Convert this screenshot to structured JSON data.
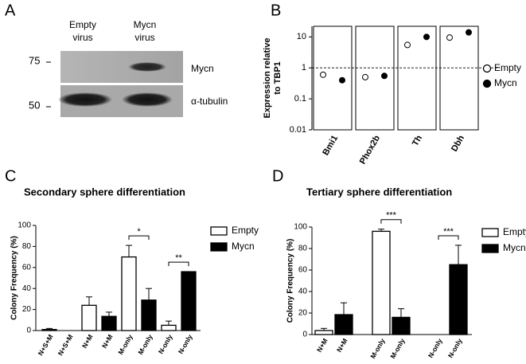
{
  "panels": [
    "A",
    "B",
    "C",
    "D"
  ],
  "blot": {
    "lanes": [
      [
        "Empty",
        "virus"
      ],
      [
        "Mycn",
        "virus"
      ]
    ],
    "markers": [
      75,
      50
    ],
    "bands": [
      "Mycn",
      "α-tubulin"
    ]
  },
  "chart_data": [
    {
      "type": "dot",
      "y_label": [
        "Expression relative",
        "to TBP1"
      ],
      "categories": [
        "Bmi1",
        "Phox2b",
        "Th",
        "Dbh"
      ],
      "series": [
        {
          "name": "Empty",
          "color": "#000000",
          "marker": "open",
          "values": [
            0.6,
            0.5,
            5.5,
            9.5
          ]
        },
        {
          "name": "Mycn",
          "color": "#000000",
          "marker": "filled",
          "values": [
            0.4,
            0.55,
            10,
            14
          ]
        }
      ],
      "ylim": [
        0.01,
        22
      ],
      "yticks": [
        0.01,
        0.1,
        1,
        10
      ],
      "log_y": true,
      "reference_line": 1,
      "legend": "right"
    },
    {
      "type": "bar",
      "title": "Secondary sphere differentiation",
      "y_label": "Colony Frequency (%)",
      "categories": [
        "N+S+M",
        "N+M",
        "M-only",
        "N-only"
      ],
      "series": [
        {
          "name": "Empty",
          "color": "#ffffff",
          "values": [
            1,
            24,
            70,
            5
          ],
          "errors": [
            1,
            8,
            11,
            4
          ]
        },
        {
          "name": "Mycn",
          "color": "#000000",
          "values": [
            0,
            13.5,
            29,
            56
          ],
          "errors": [
            null,
            4,
            11,
            null
          ]
        }
      ],
      "significance": [
        null,
        null,
        "*",
        "**"
      ],
      "ylim": [
        0,
        100
      ],
      "yticks": [
        0,
        20,
        40,
        60,
        80,
        100
      ],
      "legend": "right"
    },
    {
      "type": "bar",
      "title": "Tertiary sphere differentiation",
      "y_label": "Colony Frequency (%)",
      "categories": [
        "N+M",
        "M-only",
        "N-only"
      ],
      "series": [
        {
          "name": "Empty",
          "color": "#ffffff",
          "values": [
            3.7,
            96,
            0
          ],
          "errors": [
            2,
            2,
            null
          ]
        },
        {
          "name": "Mycn",
          "color": "#000000",
          "values": [
            18.5,
            16,
            65
          ],
          "errors": [
            11,
            8,
            18
          ]
        }
      ],
      "significance": [
        null,
        "***",
        "***"
      ],
      "ylim": [
        0,
        100
      ],
      "yticks": [
        0,
        20,
        40,
        60,
        80,
        100
      ],
      "legend": "right"
    }
  ]
}
